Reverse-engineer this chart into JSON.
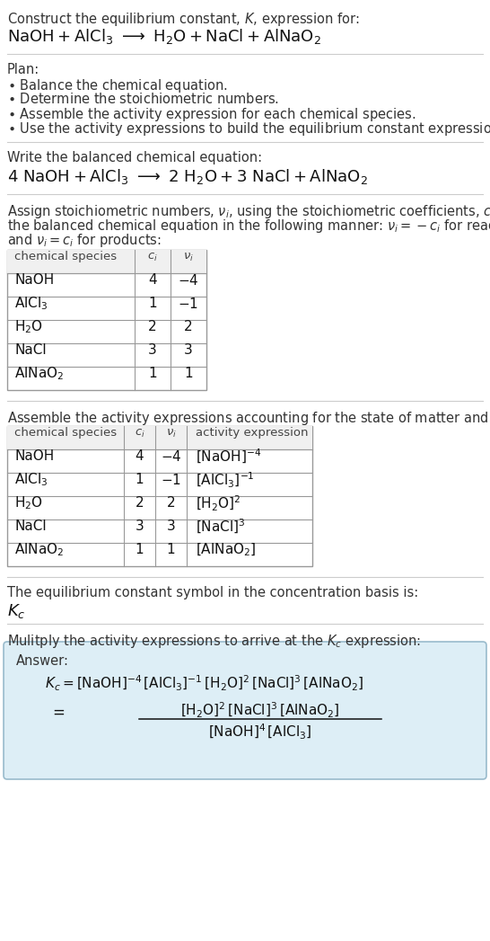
{
  "bg_color": "#ffffff",
  "separator_color": "#cccccc",
  "text_color": "#333333",
  "black": "#000000",
  "table_border": "#999999",
  "answer_box_bg": "#ddeef6",
  "answer_box_border": "#99bbcc",
  "fig_w": 5.46,
  "fig_h": 10.47,
  "dpi": 100
}
